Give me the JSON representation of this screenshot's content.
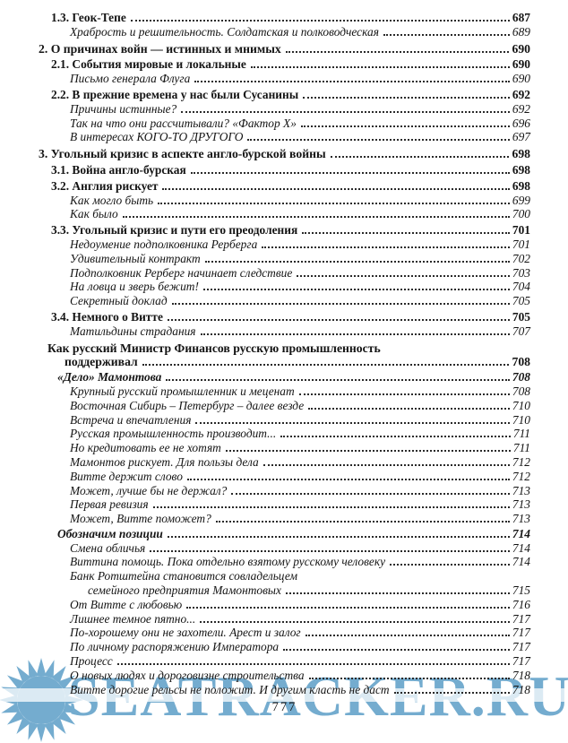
{
  "watermark": {
    "text": "SEATRACKER.RU",
    "color": "#74accf",
    "logo": "sun-icon"
  },
  "footer": {
    "page_number": "777"
  },
  "toc": {
    "entries": [
      {
        "t": "1.3. Геок-Тепе",
        "p": "687",
        "c": "sec"
      },
      {
        "t": "Храбрость и решительность. Солдатская и полководческая",
        "p": "689",
        "c": "sub"
      },
      {
        "t": "2. О причинах войн — истинных и мнимых",
        "p": "690",
        "c": "ch"
      },
      {
        "t": "2.1. События мировые и локальные",
        "p": "690",
        "c": "sec"
      },
      {
        "t": "Письмо генерала Флуга",
        "p": "690",
        "c": "sub"
      },
      {
        "t": "2.2. В прежние времена у нас были Сусанины",
        "p": "692",
        "c": "sec"
      },
      {
        "t": "Причины истинные?",
        "p": "692",
        "c": "sub"
      },
      {
        "t": "Так на что они рассчитывали? «Фактор Х»",
        "p": "696",
        "c": "sub"
      },
      {
        "t": "В интересах КОГО-ТО ДРУГОГО",
        "p": "697",
        "c": "sub"
      },
      {
        "t": "3. Угольный кризис в аспекте англо-бурской войны",
        "p": "698",
        "c": "ch"
      },
      {
        "t": "3.1. Война англо-бурская",
        "p": "698",
        "c": "sec"
      },
      {
        "t": "3.2. Англия рискует",
        "p": "698",
        "c": "sec"
      },
      {
        "t": "Как могло быть",
        "p": "699",
        "c": "sub"
      },
      {
        "t": "Как было",
        "p": "700",
        "c": "sub"
      },
      {
        "t": "3.3. Угольный кризис и пути его преодоления",
        "p": "701",
        "c": "sec"
      },
      {
        "t": "Недоумение подполковника Рерберга",
        "p": "701",
        "c": "sub"
      },
      {
        "t": "Удивительный контракт",
        "p": "702",
        "c": "sub"
      },
      {
        "t": "Подполковник Рерберг начинает следствие",
        "p": "703",
        "c": "sub"
      },
      {
        "t": "На ловца и зверь бежит!",
        "p": "704",
        "c": "sub"
      },
      {
        "t": "Секретный доклад",
        "p": "705",
        "c": "sub"
      },
      {
        "t": "3.4. Немного о Витте",
        "p": "705",
        "c": "sec"
      },
      {
        "t": "Матильдины страдания",
        "p": "707",
        "c": "sub"
      },
      {
        "t": "Как русский Министр Финансов русскую промышленность",
        "p": null,
        "c": "h"
      },
      {
        "t": "поддерживал",
        "p": "708",
        "c": "hc"
      },
      {
        "t": "«Дело» Мамонтова",
        "p": "708",
        "c": "bi"
      },
      {
        "t": "Крупный русский промышленник и меценат",
        "p": "708",
        "c": "sub"
      },
      {
        "t": "Восточная Сибирь – Петербург – далее везде",
        "p": "710",
        "c": "sub"
      },
      {
        "t": "Встреча и впечатления",
        "p": "710",
        "c": "sub"
      },
      {
        "t": "Русская промышленность производит...",
        "p": "711",
        "c": "sub"
      },
      {
        "t": "Но кредитовать ее не хотят",
        "p": "711",
        "c": "sub"
      },
      {
        "t": "Мамонтов рискует. Для пользы дела",
        "p": "712",
        "c": "sub"
      },
      {
        "t": "Витте держит слово",
        "p": "712",
        "c": "sub"
      },
      {
        "t": "Может, лучше бы не держал?",
        "p": "713",
        "c": "sub"
      },
      {
        "t": "Первая ревизия",
        "p": "713",
        "c": "sub"
      },
      {
        "t": "Может, Витте поможет?",
        "p": "713",
        "c": "sub"
      },
      {
        "t": "Обозначим позиции",
        "p": "714",
        "c": "bi"
      },
      {
        "t": "Смена обличья",
        "p": "714",
        "c": "sub"
      },
      {
        "t": "Виттина помощь. Пока отдельно взятому русскому человеку",
        "p": "714",
        "c": "sub"
      },
      {
        "t": "Банк Ротштейна становится совладельцем",
        "p": null,
        "c": "sub"
      },
      {
        "t": "семейного предприятия Мамонтовых",
        "p": "715",
        "c": "sub2"
      },
      {
        "t": "От Витте с любовью",
        "p": "716",
        "c": "sub"
      },
      {
        "t": "Лишнее темное пятно...",
        "p": "717",
        "c": "sub"
      },
      {
        "t": "По-хорошему они не захотели. Арест и залог",
        "p": "717",
        "c": "sub"
      },
      {
        "t": "По личному распоряжению Императора",
        "p": "717",
        "c": "sub"
      },
      {
        "t": "Процесс",
        "p": "717",
        "c": "sub"
      },
      {
        "t": "О новых людях и дороговизне строительства",
        "p": "718",
        "c": "sub"
      },
      {
        "t": "Витте дорогие рельсы не положит. И другим класть не даст",
        "p": "718",
        "c": "sub"
      }
    ]
  }
}
